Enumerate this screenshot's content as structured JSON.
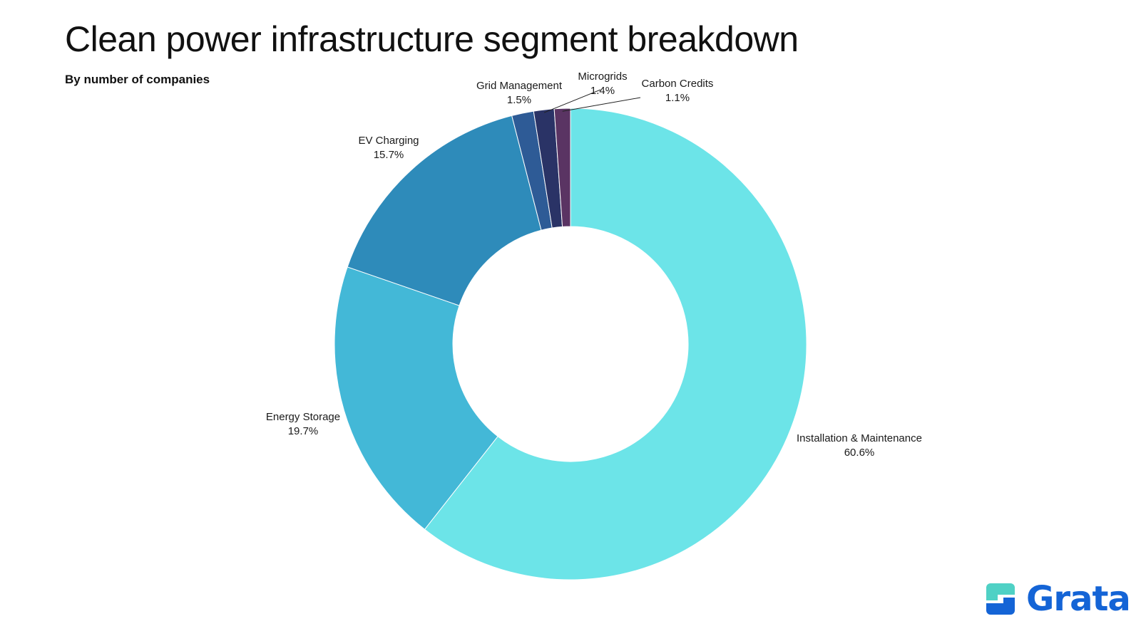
{
  "title": "Clean power infrastructure segment breakdown",
  "subtitle": "By number of companies",
  "brand": {
    "name": "Grata",
    "color": "#1464d6",
    "mark_color_top": "#4fd1c5",
    "mark_color_bottom": "#1464d6"
  },
  "chart_data": {
    "type": "pie",
    "variant": "donut",
    "title": "Clean power infrastructure segment breakdown",
    "subtitle": "By number of companies",
    "start_angle_deg": 0,
    "direction": "clockwise",
    "slices": [
      {
        "label": "Installation & Maintenance",
        "value": 60.6,
        "display": "60.6%",
        "color": "#6ce4e8"
      },
      {
        "label": "Energy Storage",
        "value": 19.7,
        "display": "19.7%",
        "color": "#43b8d7"
      },
      {
        "label": "EV Charging",
        "value": 15.7,
        "display": "15.7%",
        "color": "#2e8bba"
      },
      {
        "label": "Grid Management",
        "value": 1.5,
        "display": "1.5%",
        "color": "#2e5b96"
      },
      {
        "label": "Microgrids",
        "value": 1.4,
        "display": "1.4%",
        "color": "#2a3366"
      },
      {
        "label": "Carbon Credits",
        "value": 1.1,
        "display": "1.1%",
        "color": "#5a3463"
      }
    ]
  }
}
